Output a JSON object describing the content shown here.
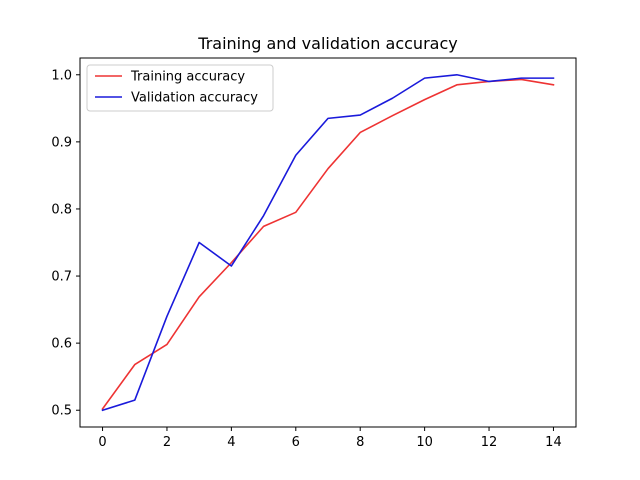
{
  "chart_data": {
    "type": "line",
    "title": "Training and validation accuracy",
    "xlabel": "",
    "ylabel": "",
    "xlim": [
      -0.7,
      14.7
    ],
    "ylim": [
      0.475,
      1.025
    ],
    "x_ticks": [
      0,
      2,
      4,
      6,
      8,
      10,
      12,
      14
    ],
    "y_ticks": [
      0.5,
      0.6,
      0.7,
      0.8,
      0.9,
      1.0
    ],
    "x_tick_labels": [
      "0",
      "2",
      "4",
      "6",
      "8",
      "10",
      "12",
      "14"
    ],
    "y_tick_labels": [
      "0.5",
      "0.6",
      "0.7",
      "0.8",
      "0.9",
      "1.0"
    ],
    "grid": false,
    "legend_position": "top-left",
    "x": [
      0,
      1,
      2,
      3,
      4,
      5,
      6,
      7,
      8,
      9,
      10,
      11,
      12,
      13,
      14
    ],
    "series": [
      {
        "name": "Training accuracy",
        "color": "#ee3333",
        "values": [
          0.502,
          0.568,
          0.598,
          0.669,
          0.72,
          0.774,
          0.795,
          0.86,
          0.914,
          0.939,
          0.963,
          0.985,
          0.99,
          0.993,
          0.985
        ]
      },
      {
        "name": "Validation accuracy",
        "color": "#1a1adb",
        "values": [
          0.5,
          0.515,
          0.64,
          0.75,
          0.715,
          0.79,
          0.88,
          0.935,
          0.94,
          0.965,
          0.995,
          1.0,
          0.99,
          0.995,
          0.995
        ]
      }
    ]
  }
}
